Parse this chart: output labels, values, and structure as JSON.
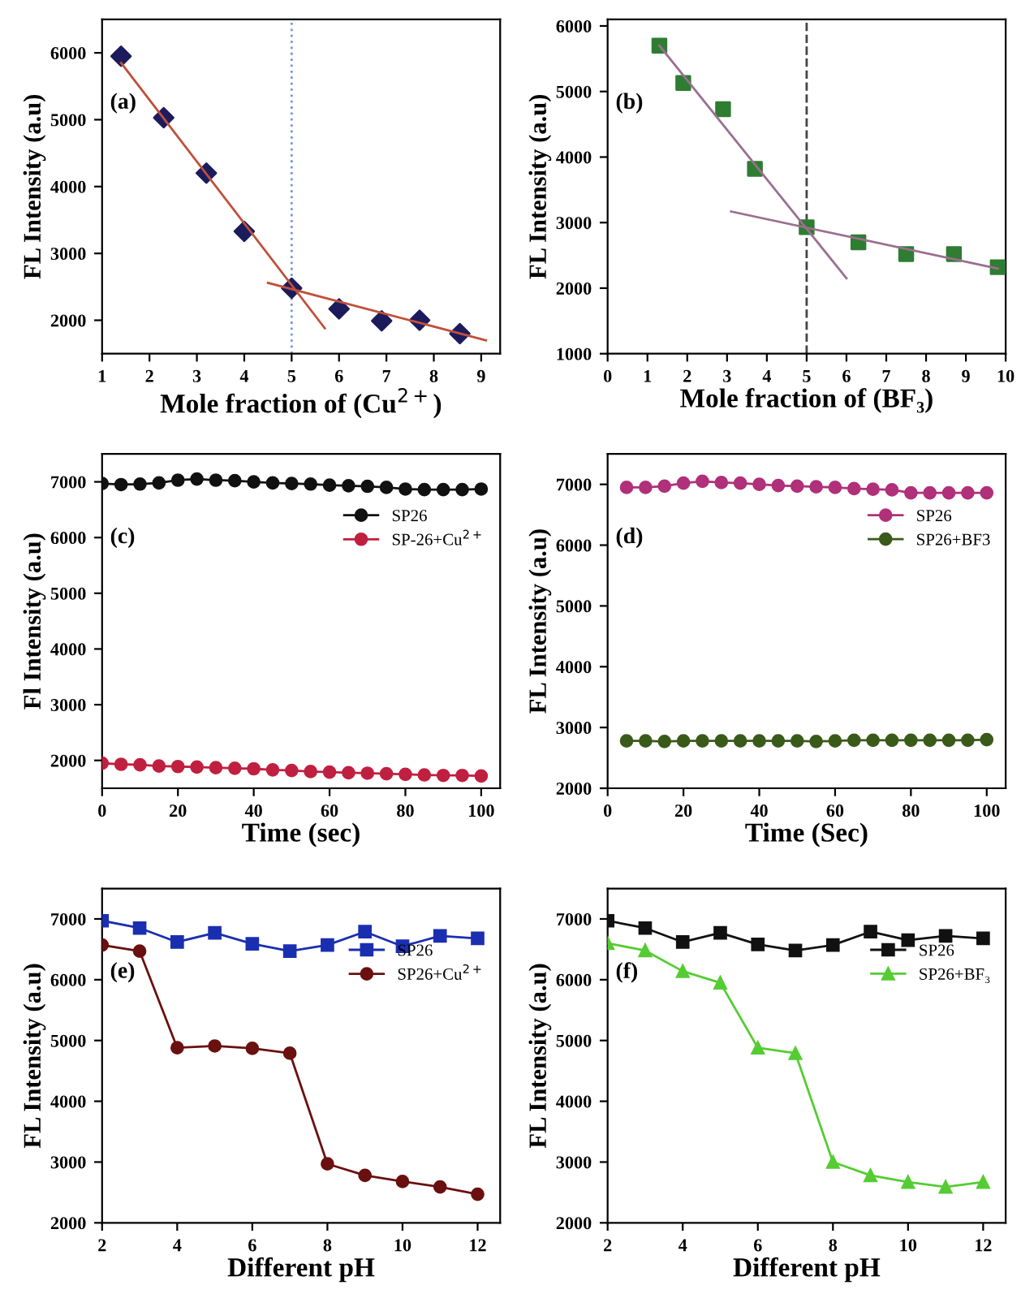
{
  "chart_data": [
    {
      "type": "scatter",
      "xlabel": "Mole fraction of (Cu$^{2+}$)",
      "ylabel": "FL Intensity (a.u)",
      "annotations": [
        "(a)"
      ],
      "xlim": [
        1,
        9.4
      ],
      "xticks": [
        1,
        2,
        3,
        4,
        5,
        6,
        7,
        8,
        9
      ],
      "ylim": [
        1500,
        6500
      ],
      "yticks": [
        2000,
        3000,
        4000,
        5000,
        6000
      ],
      "marker": "diamond",
      "legend": false,
      "ref_lines": [
        {
          "axis": "x",
          "value": 5,
          "color": "#7799cc",
          "line_style": "dotted"
        }
      ],
      "series": [
        {
          "color": "#1c1c5c",
          "x": [
            1.4,
            2.3,
            3.2,
            4,
            5,
            6,
            6.9,
            7.7,
            8.55
          ],
          "values": [
            5950,
            5030,
            4200,
            3330,
            2480,
            2170,
            1990,
            2000,
            1800
          ]
        },
        {
          "type": "line",
          "color": "#c0503a",
          "marker": "none",
          "x": [
            1.4,
            5.7
          ],
          "values": [
            5850,
            1880
          ]
        },
        {
          "type": "line",
          "color": "#c0503a",
          "marker": "none",
          "x": [
            4.5,
            9.1
          ],
          "values": [
            2560,
            1700
          ]
        }
      ]
    },
    {
      "type": "scatter",
      "xlabel": "Mole fraction of (BF₃)",
      "ylabel": "FL Intensity (a.u)",
      "annotations": [
        "(b)"
      ],
      "xlim": [
        0,
        10
      ],
      "xticks": [
        0,
        1,
        2,
        3,
        4,
        5,
        6,
        7,
        8,
        9,
        10
      ],
      "ylim": [
        1000,
        6100
      ],
      "yticks": [
        1000,
        2000,
        3000,
        4000,
        5000,
        6000
      ],
      "marker": "square",
      "legend": false,
      "ref_lines": [
        {
          "axis": "x",
          "value": 5,
          "color": "#444444",
          "line_style": "dashed"
        }
      ],
      "series": [
        {
          "color": "#2e7d32",
          "x": [
            1.3,
            1.9,
            2.9,
            3.7,
            5,
            6.3,
            7.5,
            8.7,
            9.8
          ],
          "values": [
            5700,
            5130,
            4730,
            3820,
            2930,
            2700,
            2520,
            2520,
            2320
          ]
        },
        {
          "type": "line",
          "color": "#9b6f8f",
          "marker": "none",
          "x": [
            1.3,
            6
          ],
          "values": [
            5700,
            2150
          ]
        },
        {
          "type": "line",
          "color": "#9b6f8f",
          "marker": "none",
          "x": [
            3.1,
            9.8
          ],
          "values": [
            3170,
            2300
          ]
        }
      ]
    },
    {
      "type": "line",
      "xlabel": "Time (sec)",
      "ylabel": "Fl Intensity (a.u)",
      "annotations": [
        "(c)"
      ],
      "xlim": [
        0,
        105
      ],
      "xticks": [
        0,
        20,
        40,
        60,
        80,
        100
      ],
      "ylim": [
        1500,
        7500
      ],
      "yticks": [
        2000,
        3000,
        4000,
        5000,
        6000,
        7000
      ],
      "marker": "circle",
      "legend": "top right",
      "x": [
        0,
        5,
        10,
        15,
        20,
        25,
        30,
        35,
        40,
        45,
        50,
        55,
        60,
        65,
        70,
        75,
        80,
        85,
        90,
        95,
        100
      ],
      "series": [
        {
          "name": "SP26",
          "color": "#111111",
          "values": [
            6970,
            6950,
            6960,
            6980,
            7030,
            7050,
            7030,
            7020,
            7000,
            6980,
            6970,
            6960,
            6940,
            6930,
            6920,
            6900,
            6870,
            6860,
            6860,
            6860,
            6870
          ]
        },
        {
          "name": "SP-26+Cu$^{2+}$",
          "color": "#c02040",
          "values": [
            1950,
            1930,
            1920,
            1900,
            1890,
            1880,
            1870,
            1860,
            1850,
            1830,
            1820,
            1800,
            1790,
            1780,
            1770,
            1760,
            1750,
            1740,
            1730,
            1730,
            1720
          ]
        }
      ]
    },
    {
      "type": "line",
      "xlabel": "Time (Sec)",
      "ylabel": "FL Intensity (a.u)",
      "annotations": [
        "(d)"
      ],
      "xlim": [
        0,
        105
      ],
      "xticks": [
        0,
        20,
        40,
        60,
        80,
        100
      ],
      "ylim": [
        2000,
        7500
      ],
      "yticks": [
        2000,
        3000,
        4000,
        5000,
        6000,
        7000
      ],
      "marker": "circle",
      "legend": "top right",
      "x": [
        5,
        10,
        15,
        20,
        25,
        30,
        35,
        40,
        45,
        50,
        55,
        60,
        65,
        70,
        75,
        80,
        85,
        90,
        95,
        100
      ],
      "series": [
        {
          "name": "SP26",
          "color": "#b0307a",
          "values": [
            6950,
            6950,
            6970,
            7020,
            7050,
            7030,
            7020,
            7000,
            6980,
            6970,
            6960,
            6950,
            6930,
            6920,
            6910,
            6860,
            6860,
            6860,
            6860,
            6860
          ]
        },
        {
          "name": "SP26+BF3",
          "color": "#3a5a1a",
          "values": [
            2780,
            2780,
            2770,
            2780,
            2780,
            2780,
            2780,
            2780,
            2780,
            2780,
            2770,
            2780,
            2790,
            2790,
            2790,
            2790,
            2790,
            2790,
            2790,
            2800
          ]
        }
      ]
    },
    {
      "type": "line",
      "xlabel": "Different pH",
      "ylabel": "FL Intensity (a.u)",
      "annotations": [
        "(e)"
      ],
      "xlim": [
        2,
        12.6
      ],
      "xticks": [
        2,
        4,
        6,
        8,
        10,
        12
      ],
      "ylim": [
        2000,
        7500
      ],
      "yticks": [
        2000,
        3000,
        4000,
        5000,
        6000,
        7000
      ],
      "legend": "top right",
      "x": [
        2,
        3,
        4,
        5,
        6,
        7,
        8,
        9,
        10,
        11,
        12
      ],
      "series": [
        {
          "name": "SP26",
          "color": "#1a2fb0",
          "marker": "square",
          "values": [
            6970,
            6850,
            6620,
            6770,
            6590,
            6470,
            6570,
            6790,
            6550,
            6720,
            6680
          ]
        },
        {
          "name": "SP26+Cu$^{2+}$",
          "color": "#6a1010",
          "marker": "circle",
          "values": [
            6570,
            6470,
            4880,
            4910,
            4870,
            4790,
            2970,
            2780,
            2680,
            2590,
            2470
          ]
        }
      ]
    },
    {
      "type": "line",
      "xlabel": "Different pH",
      "ylabel": "FL Intensity (a.u)",
      "annotations": [
        "(f)"
      ],
      "xlim": [
        2,
        12.6
      ],
      "xticks": [
        2,
        4,
        6,
        8,
        10,
        12
      ],
      "ylim": [
        2000,
        7500
      ],
      "yticks": [
        2000,
        3000,
        4000,
        5000,
        6000,
        7000
      ],
      "legend": "top right",
      "x": [
        2,
        3,
        4,
        5,
        6,
        7,
        8,
        9,
        10,
        11,
        12
      ],
      "series": [
        {
          "name": "SP26",
          "color": "#111111",
          "marker": "square",
          "values": [
            6970,
            6850,
            6620,
            6770,
            6580,
            6480,
            6570,
            6790,
            6650,
            6720,
            6680
          ]
        },
        {
          "name": "SP26+BF₃",
          "color": "#55cc33",
          "marker": "triangle",
          "values": [
            6600,
            6480,
            6140,
            5950,
            4880,
            4790,
            3000,
            2780,
            2670,
            2590,
            2670
          ]
        }
      ]
    }
  ]
}
